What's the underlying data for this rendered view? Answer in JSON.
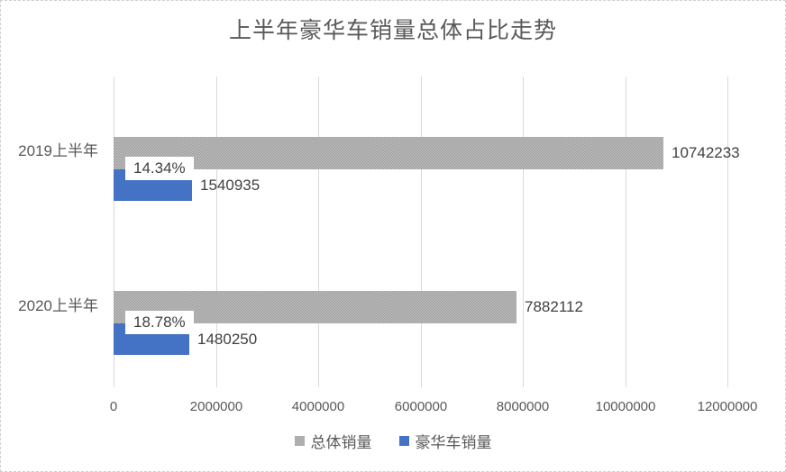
{
  "chart_data": {
    "type": "bar",
    "orientation": "horizontal",
    "title": "上半年豪华车销量总体占比走势",
    "categories": [
      "2019上半年",
      "2020上半年"
    ],
    "series": [
      {
        "name": "总体销量",
        "color": "#a6a6a6",
        "pattern": "stipple",
        "values": [
          10742233,
          7882112
        ]
      },
      {
        "name": "豪华车销量",
        "color": "#4472c4",
        "values": [
          1540935,
          1480250
        ]
      }
    ],
    "percent_callouts": [
      {
        "category": "2019上半年",
        "label": "14.34%"
      },
      {
        "category": "2020上半年",
        "label": "18.78%"
      }
    ],
    "x_axis": {
      "min": 0,
      "max": 12000000,
      "tick_interval": 2000000,
      "tick_labels": [
        "0",
        "2000000",
        "4000000",
        "6000000",
        "8000000",
        "10000000",
        "12000000"
      ]
    },
    "grid": "vertical-gridlines",
    "legend_position": "bottom",
    "title_color": "#595959",
    "axis_label_color": "#595959",
    "data_label_color": "#404040",
    "gridline_color": "#d9d9d9"
  }
}
